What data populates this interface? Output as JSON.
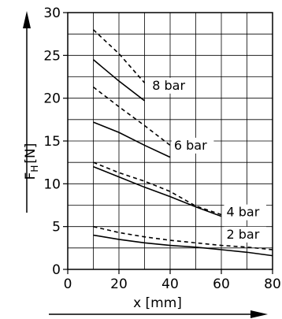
{
  "chart_data": {
    "type": "line",
    "xlabel": "x [mm]",
    "ylabel_main": "F",
    "ylabel_sub": "H",
    "ylabel_unit": "[N]",
    "xlim": [
      0,
      80
    ],
    "ylim": [
      0,
      30
    ],
    "x_ticks": [
      "0",
      "20",
      "40",
      "60",
      "80"
    ],
    "y_ticks": [
      "0",
      "5",
      "10",
      "15",
      "20",
      "25",
      "30"
    ],
    "grid": true,
    "series": [
      {
        "name": "8 bar",
        "style": "solid",
        "x": [
          10,
          20,
          30
        ],
        "y": [
          24.5,
          22.0,
          19.7
        ]
      },
      {
        "name": "8 bar",
        "style": "dashed",
        "x": [
          10,
          20,
          30
        ],
        "y": [
          28.0,
          25.2,
          21.8
        ]
      },
      {
        "name": "6 bar",
        "style": "solid",
        "x": [
          10,
          20,
          30,
          40
        ],
        "y": [
          17.2,
          16.0,
          14.5,
          13.1
        ]
      },
      {
        "name": "6 bar",
        "style": "dashed",
        "x": [
          10,
          20,
          30,
          40
        ],
        "y": [
          21.3,
          19.0,
          16.8,
          14.5
        ]
      },
      {
        "name": "4 bar",
        "style": "solid",
        "x": [
          10,
          20,
          30,
          40,
          50,
          60
        ],
        "y": [
          12.0,
          10.8,
          9.6,
          8.5,
          7.3,
          6.2
        ]
      },
      {
        "name": "4 bar",
        "style": "dashed",
        "x": [
          10,
          20,
          30,
          40,
          50,
          60
        ],
        "y": [
          12.5,
          11.3,
          10.3,
          9.1,
          7.4,
          6.4
        ]
      },
      {
        "name": "2 bar",
        "style": "solid",
        "x": [
          10,
          20,
          30,
          40,
          50,
          60,
          70,
          80
        ],
        "y": [
          4.0,
          3.5,
          3.1,
          2.8,
          2.6,
          2.3,
          2.0,
          1.6
        ]
      },
      {
        "name": "2 bar",
        "style": "dashed",
        "x": [
          10,
          20,
          30,
          40,
          50,
          60,
          70,
          80
        ],
        "y": [
          5.0,
          4.3,
          3.8,
          3.4,
          3.1,
          2.8,
          2.6,
          2.3
        ]
      }
    ],
    "annotations": [
      {
        "text": "8 bar",
        "x": 33,
        "y": 21.0
      },
      {
        "text": "6 bar",
        "x": 41.5,
        "y": 14.0
      },
      {
        "text": "4 bar",
        "x": 62,
        "y": 6.2
      },
      {
        "text": "2 bar",
        "x": 62,
        "y": 3.6
      }
    ]
  }
}
